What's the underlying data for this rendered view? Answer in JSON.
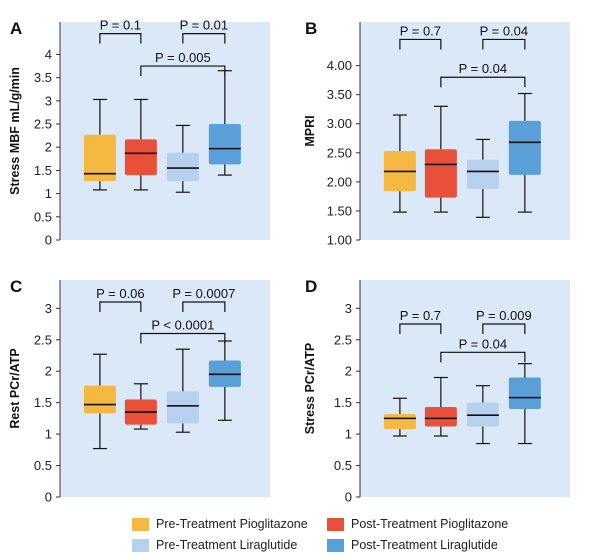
{
  "legend": [
    {
      "label": "Pre-Treatment Pioglitazone",
      "color": "#f5b942"
    },
    {
      "label": "Post-Treatment Pioglitazone",
      "color": "#e9503a"
    },
    {
      "label": "Pre-Treatment Liraglutide",
      "color": "#b7d0ee"
    },
    {
      "label": "Post-Treatment Liraglutide",
      "color": "#5a9fd8"
    }
  ],
  "chart_data": [
    {
      "panel": "A",
      "type": "box",
      "ylabel": "Stress MBF mL/g/min",
      "ylim": [
        0,
        4.7
      ],
      "yticks": [
        0,
        0.5,
        1,
        1.5,
        2,
        2.5,
        3,
        3.5,
        4
      ],
      "ytick_labels": [
        "0",
        "0.5",
        "1",
        "1.5",
        "2",
        "2.5",
        "3",
        "3.5",
        "4"
      ],
      "series": [
        {
          "name": "Pre-Treatment Pioglitazone",
          "min": 1.08,
          "q1": 1.27,
          "median": 1.43,
          "q3": 2.27,
          "max": 3.03
        },
        {
          "name": "Post-Treatment Pioglitazone",
          "min": 1.08,
          "q1": 1.4,
          "median": 1.87,
          "q3": 2.17,
          "max": 3.03
        },
        {
          "name": "Pre-Treatment Liraglutide",
          "min": 1.03,
          "q1": 1.27,
          "median": 1.55,
          "q3": 1.88,
          "max": 2.47
        },
        {
          "name": "Post-Treatment Liraglutide",
          "min": 1.4,
          "q1": 1.63,
          "median": 1.97,
          "q3": 2.5,
          "max": 3.65
        }
      ],
      "annotations": [
        {
          "text": "P = 0.1",
          "from": 0,
          "to": 1,
          "level": 4.45
        },
        {
          "text": "P = 0.01",
          "from": 2,
          "to": 3,
          "level": 4.45
        },
        {
          "text": "P = 0.005",
          "from": 1,
          "to": 3,
          "level": 3.75
        }
      ]
    },
    {
      "panel": "B",
      "type": "box",
      "ylabel": "MPRI",
      "ylim": [
        1.0,
        4.75
      ],
      "yticks": [
        1,
        1.5,
        2,
        2.5,
        3,
        3.5,
        4
      ],
      "ytick_labels": [
        "1.00",
        "1.50",
        "2.00",
        "2.50",
        "3.00",
        "3.50",
        "4.00"
      ],
      "series": [
        {
          "name": "Pre-Treatment Pioglitazone",
          "min": 1.48,
          "q1": 1.84,
          "median": 2.18,
          "q3": 2.53,
          "max": 3.15
        },
        {
          "name": "Post-Treatment Pioglitazone",
          "min": 1.48,
          "q1": 1.73,
          "median": 2.3,
          "q3": 2.56,
          "max": 3.3
        },
        {
          "name": "Pre-Treatment Liraglutide",
          "min": 1.39,
          "q1": 1.88,
          "median": 2.18,
          "q3": 2.38,
          "max": 2.73
        },
        {
          "name": "Post-Treatment Liraglutide",
          "min": 1.48,
          "q1": 2.12,
          "median": 2.68,
          "q3": 3.05,
          "max": 3.52
        }
      ],
      "annotations": [
        {
          "text": "P = 0.7",
          "from": 0,
          "to": 1,
          "level": 4.45
        },
        {
          "text": "P = 0.04",
          "from": 2,
          "to": 3,
          "level": 4.45
        },
        {
          "text": "P = 0.04",
          "from": 1,
          "to": 3,
          "level": 3.8
        }
      ]
    },
    {
      "panel": "C",
      "type": "box",
      "ylabel": "Rest PCr/ATP",
      "ylim": [
        0,
        3.45
      ],
      "yticks": [
        0,
        0.5,
        1,
        1.5,
        2,
        2.5,
        3
      ],
      "ytick_labels": [
        "0",
        "0.5",
        "1",
        "1.5",
        "2",
        "2.5",
        "3"
      ],
      "series": [
        {
          "name": "Pre-Treatment Pioglitazone",
          "min": 0.77,
          "q1": 1.33,
          "median": 1.47,
          "q3": 1.77,
          "max": 2.27
        },
        {
          "name": "Post-Treatment Pioglitazone",
          "min": 1.08,
          "q1": 1.15,
          "median": 1.35,
          "q3": 1.55,
          "max": 1.8
        },
        {
          "name": "Pre-Treatment Liraglutide",
          "min": 1.03,
          "q1": 1.17,
          "median": 1.45,
          "q3": 1.68,
          "max": 2.35
        },
        {
          "name": "Post-Treatment Liraglutide",
          "min": 1.22,
          "q1": 1.75,
          "median": 1.95,
          "q3": 2.17,
          "max": 2.48
        }
      ],
      "annotations": [
        {
          "text": "P = 0.06",
          "from": 0,
          "to": 1,
          "level": 3.1
        },
        {
          "text": "P = 0.0007",
          "from": 2,
          "to": 3,
          "level": 3.1
        },
        {
          "text": "P < 0.0001",
          "from": 1,
          "to": 3,
          "level": 2.6
        }
      ]
    },
    {
      "panel": "D",
      "type": "box",
      "ylabel": "Stress PCr/ATP",
      "ylim": [
        0,
        3.45
      ],
      "yticks": [
        0,
        0.5,
        1,
        1.5,
        2,
        2.5,
        3
      ],
      "ytick_labels": [
        "0",
        "0.5",
        "1",
        "1.5",
        "2",
        "2.5",
        "3"
      ],
      "series": [
        {
          "name": "Pre-Treatment Pioglitazone",
          "min": 0.97,
          "q1": 1.08,
          "median": 1.25,
          "q3": 1.32,
          "max": 1.57
        },
        {
          "name": "Post-Treatment Pioglitazone",
          "min": 0.97,
          "q1": 1.12,
          "median": 1.25,
          "q3": 1.43,
          "max": 1.9
        },
        {
          "name": "Pre-Treatment Liraglutide",
          "min": 0.85,
          "q1": 1.12,
          "median": 1.3,
          "q3": 1.5,
          "max": 1.77
        },
        {
          "name": "Post-Treatment Liraglutide",
          "min": 0.85,
          "q1": 1.4,
          "median": 1.58,
          "q3": 1.9,
          "max": 2.12
        }
      ],
      "annotations": [
        {
          "text": "P = 0.7",
          "from": 0,
          "to": 1,
          "level": 2.75
        },
        {
          "text": "P = 0.009",
          "from": 2,
          "to": 3,
          "level": 2.75
        },
        {
          "text": "P = 0.04",
          "from": 1,
          "to": 3,
          "level": 2.3
        }
      ]
    }
  ]
}
